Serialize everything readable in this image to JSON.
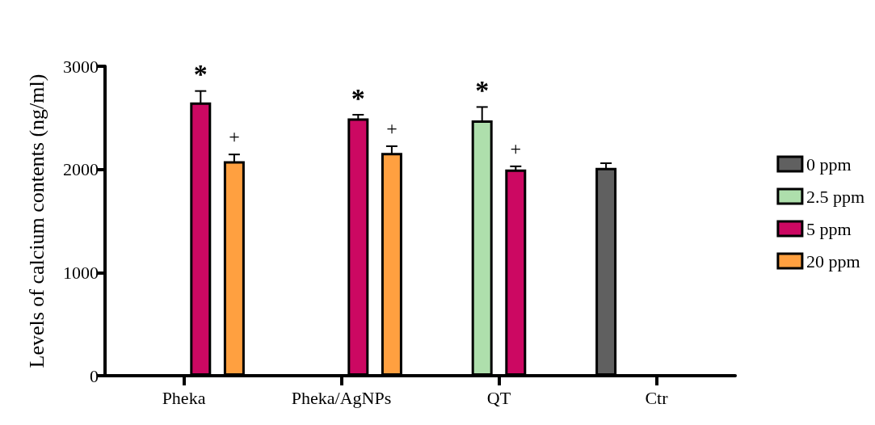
{
  "chart_data": {
    "type": "bar",
    "ylabel": "Levels of calcium contents (ng/ml)",
    "categories": [
      "Pheka",
      "Pheka/AgNPs",
      "QT",
      "Ctr"
    ],
    "series": [
      {
        "name": "0 ppm",
        "color": "#606060",
        "values": [
          null,
          null,
          null,
          2015
        ],
        "errors": [
          null,
          null,
          null,
          45
        ]
      },
      {
        "name": "2.5 ppm",
        "color": "#aedfac",
        "values": [
          null,
          null,
          2475,
          null
        ],
        "errors": [
          null,
          null,
          130,
          null
        ],
        "value_labels": [
          null,
          null,
          "*",
          null
        ]
      },
      {
        "name": "5 ppm",
        "color": "#cc0862",
        "values": [
          2650,
          2495,
          2000,
          null
        ],
        "errors": [
          110,
          35,
          30,
          null
        ],
        "value_labels": [
          "*",
          "*",
          "+",
          null
        ]
      },
      {
        "name": "20 ppm",
        "color": "#ffa040",
        "values": [
          2080,
          2160,
          null,
          null
        ],
        "errors": [
          65,
          65,
          null,
          null
        ],
        "value_labels": [
          "+",
          "+",
          null,
          null
        ]
      }
    ],
    "ylim": [
      0,
      3000
    ],
    "yticks": [
      0,
      1000,
      2000,
      3000
    ],
    "grid": false,
    "legend": "right"
  }
}
